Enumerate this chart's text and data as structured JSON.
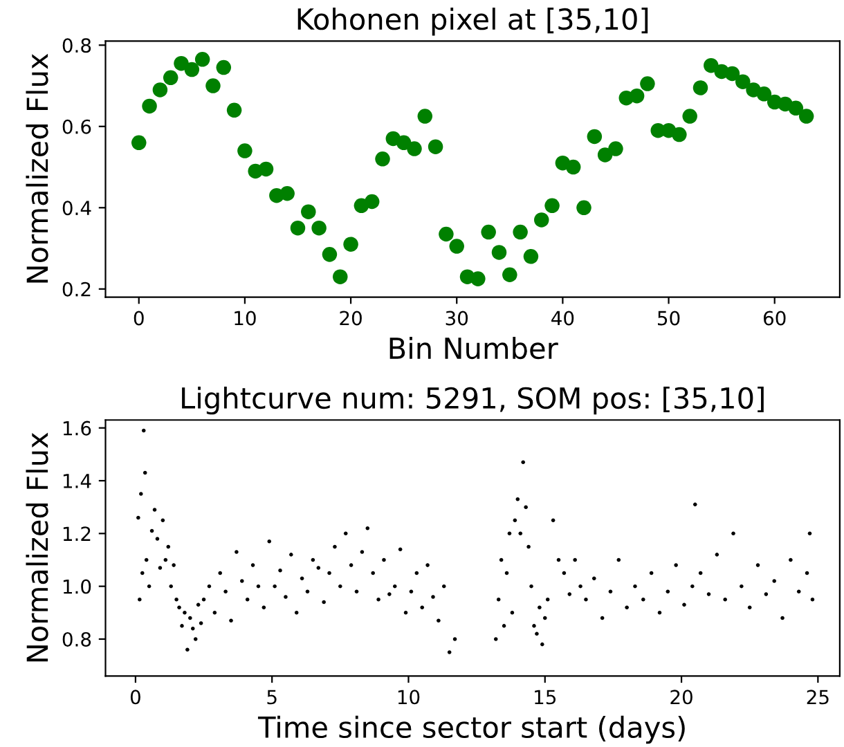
{
  "chart_data": [
    {
      "type": "scatter",
      "title": "Kohonen pixel at [35,10]",
      "xlabel": "Bin Number",
      "ylabel": "Normalized Flux",
      "marker": "circle",
      "grid": false,
      "legend": false,
      "x": [
        0,
        1,
        2,
        3,
        4,
        5,
        6,
        7,
        8,
        9,
        10,
        11,
        12,
        13,
        14,
        15,
        16,
        17,
        18,
        19,
        20,
        21,
        22,
        23,
        24,
        25,
        26,
        27,
        28,
        29,
        30,
        31,
        32,
        33,
        34,
        35,
        36,
        37,
        38,
        39,
        40,
        41,
        42,
        43,
        44,
        45,
        46,
        47,
        48,
        49,
        50,
        51,
        52,
        53,
        54,
        55,
        56,
        57,
        58,
        59,
        60,
        61,
        62,
        63
      ],
      "series": [
        {
          "color": "#008000",
          "values": [
            0.56,
            0.65,
            0.69,
            0.72,
            0.755,
            0.74,
            0.765,
            0.7,
            0.745,
            0.64,
            0.54,
            0.49,
            0.495,
            0.43,
            0.435,
            0.35,
            0.39,
            0.35,
            0.285,
            0.23,
            0.31,
            0.405,
            0.415,
            0.52,
            0.57,
            0.56,
            0.545,
            0.625,
            0.55,
            0.335,
            0.305,
            0.23,
            0.225,
            0.34,
            0.29,
            0.235,
            0.34,
            0.28,
            0.37,
            0.405,
            0.51,
            0.5,
            0.4,
            0.575,
            0.53,
            0.545,
            0.67,
            0.675,
            0.705,
            0.59,
            0.59,
            0.58,
            0.625,
            0.695,
            0.75,
            0.735,
            0.73,
            0.71,
            0.69,
            0.68,
            0.66,
            0.655,
            0.645,
            0.625
          ]
        }
      ],
      "xlim": [
        -3.15,
        66.15
      ],
      "xticks": [
        0,
        10,
        20,
        30,
        40,
        50,
        60
      ],
      "ylim": [
        0.18,
        0.81
      ],
      "yticks": [
        0.2,
        0.4,
        0.6,
        0.8
      ]
    },
    {
      "type": "scatter",
      "title": "Lightcurve num: 5291, SOM pos: [35,10]",
      "xlabel": "Time since sector start (days)",
      "ylabel": "Normalized Flux",
      "marker": "circle",
      "grid": false,
      "legend": false,
      "x": [
        0.1,
        0.15,
        0.2,
        0.25,
        0.3,
        0.35,
        0.4,
        0.5,
        0.6,
        0.7,
        0.8,
        0.9,
        1.0,
        1.1,
        1.2,
        1.3,
        1.4,
        1.5,
        1.6,
        1.7,
        1.8,
        1.9,
        2.0,
        2.1,
        2.2,
        2.3,
        2.4,
        2.5,
        2.7,
        2.9,
        3.1,
        3.3,
        3.5,
        3.7,
        3.9,
        4.1,
        4.3,
        4.5,
        4.7,
        4.9,
        5.1,
        5.3,
        5.5,
        5.7,
        5.9,
        6.1,
        6.3,
        6.5,
        6.7,
        6.9,
        7.1,
        7.3,
        7.5,
        7.7,
        7.9,
        8.1,
        8.3,
        8.5,
        8.7,
        8.9,
        9.1,
        9.3,
        9.5,
        9.7,
        9.9,
        10.1,
        10.3,
        10.5,
        10.7,
        10.9,
        11.1,
        11.3,
        11.5,
        11.7,
        13.2,
        13.3,
        13.4,
        13.5,
        13.6,
        13.7,
        13.8,
        13.9,
        14.0,
        14.1,
        14.2,
        14.3,
        14.4,
        14.5,
        14.6,
        14.7,
        14.8,
        14.9,
        15.0,
        15.1,
        15.3,
        15.5,
        15.7,
        15.9,
        16.1,
        16.3,
        16.5,
        16.8,
        17.1,
        17.4,
        17.7,
        18.0,
        18.3,
        18.6,
        18.9,
        19.2,
        19.5,
        19.8,
        20.1,
        20.4,
        20.5,
        20.7,
        21.0,
        21.3,
        21.6,
        21.9,
        22.2,
        22.5,
        22.8,
        23.1,
        23.4,
        23.7,
        24.0,
        24.3,
        24.6,
        24.7,
        24.8
      ],
      "series": [
        {
          "color": "#000000",
          "values": [
            1.26,
            0.95,
            1.35,
            1.05,
            1.59,
            1.43,
            1.1,
            1.0,
            1.21,
            1.29,
            1.18,
            1.07,
            1.25,
            1.1,
            1.15,
            1.0,
            1.08,
            0.95,
            0.92,
            0.85,
            0.9,
            0.76,
            0.88,
            0.84,
            0.8,
            0.93,
            0.86,
            0.95,
            1.0,
            0.9,
            1.05,
            0.98,
            0.87,
            1.13,
            1.02,
            0.95,
            1.08,
            1.0,
            0.92,
            1.17,
            1.0,
            1.06,
            0.96,
            1.12,
            0.9,
            1.03,
            0.98,
            1.1,
            1.07,
            0.94,
            1.05,
            1.15,
            1.0,
            1.2,
            1.08,
            0.98,
            1.13,
            1.22,
            1.05,
            0.95,
            1.1,
            0.97,
            1.0,
            1.14,
            0.9,
            0.98,
            1.05,
            0.92,
            1.08,
            0.96,
            0.87,
            1.0,
            0.75,
            0.8,
            0.8,
            0.95,
            1.1,
            0.85,
            1.05,
            1.2,
            0.9,
            1.25,
            1.33,
            1.2,
            1.47,
            1.3,
            1.15,
            1.0,
            0.85,
            0.82,
            0.92,
            0.78,
            0.88,
            0.95,
            1.25,
            1.1,
            1.05,
            0.97,
            1.1,
            1.0,
            0.95,
            1.03,
            0.88,
            0.98,
            1.1,
            0.92,
            1.0,
            0.95,
            1.05,
            0.9,
            0.98,
            1.08,
            0.93,
            1.0,
            1.31,
            1.05,
            0.97,
            1.12,
            0.95,
            1.2,
            1.0,
            0.92,
            1.08,
            0.97,
            1.02,
            0.88,
            1.1,
            0.98,
            1.05,
            1.2,
            0.95
          ]
        }
      ],
      "xlim": [
        -1.1,
        25.8
      ],
      "xticks": [
        0,
        5,
        10,
        15,
        20,
        25
      ],
      "ylim": [
        0.66,
        1.63
      ],
      "yticks": [
        0.8,
        {
          "value": 1,
          "label": "1.0"
        },
        1.2,
        1.4,
        1.6
      ]
    }
  ]
}
